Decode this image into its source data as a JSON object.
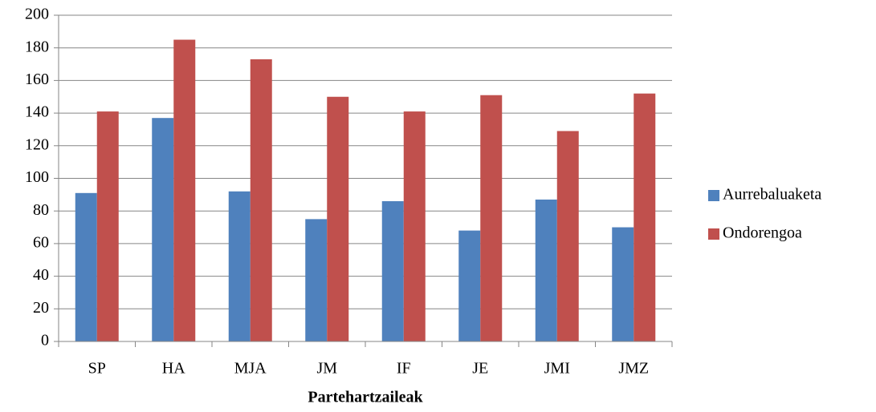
{
  "chart_data": {
    "type": "bar",
    "categories": [
      "SP",
      "HA",
      "MJA",
      "JM",
      "IF",
      "JE",
      "JMI",
      "JMZ"
    ],
    "series": [
      {
        "name": "Aurrebaluaketa",
        "color": "#4f81bd",
        "values": [
          91,
          137,
          92,
          75,
          86,
          68,
          87,
          70
        ]
      },
      {
        "name": "Ondorengoa",
        "color": "#c0504d",
        "values": [
          141,
          185,
          173,
          150,
          141,
          151,
          129,
          152
        ]
      }
    ],
    "x_label": "Partehartzaileak",
    "ylim": [
      0,
      200
    ],
    "yticks": [
      0,
      20,
      40,
      60,
      80,
      100,
      120,
      140,
      160,
      180,
      200
    ],
    "grid": true,
    "legend": "right"
  }
}
